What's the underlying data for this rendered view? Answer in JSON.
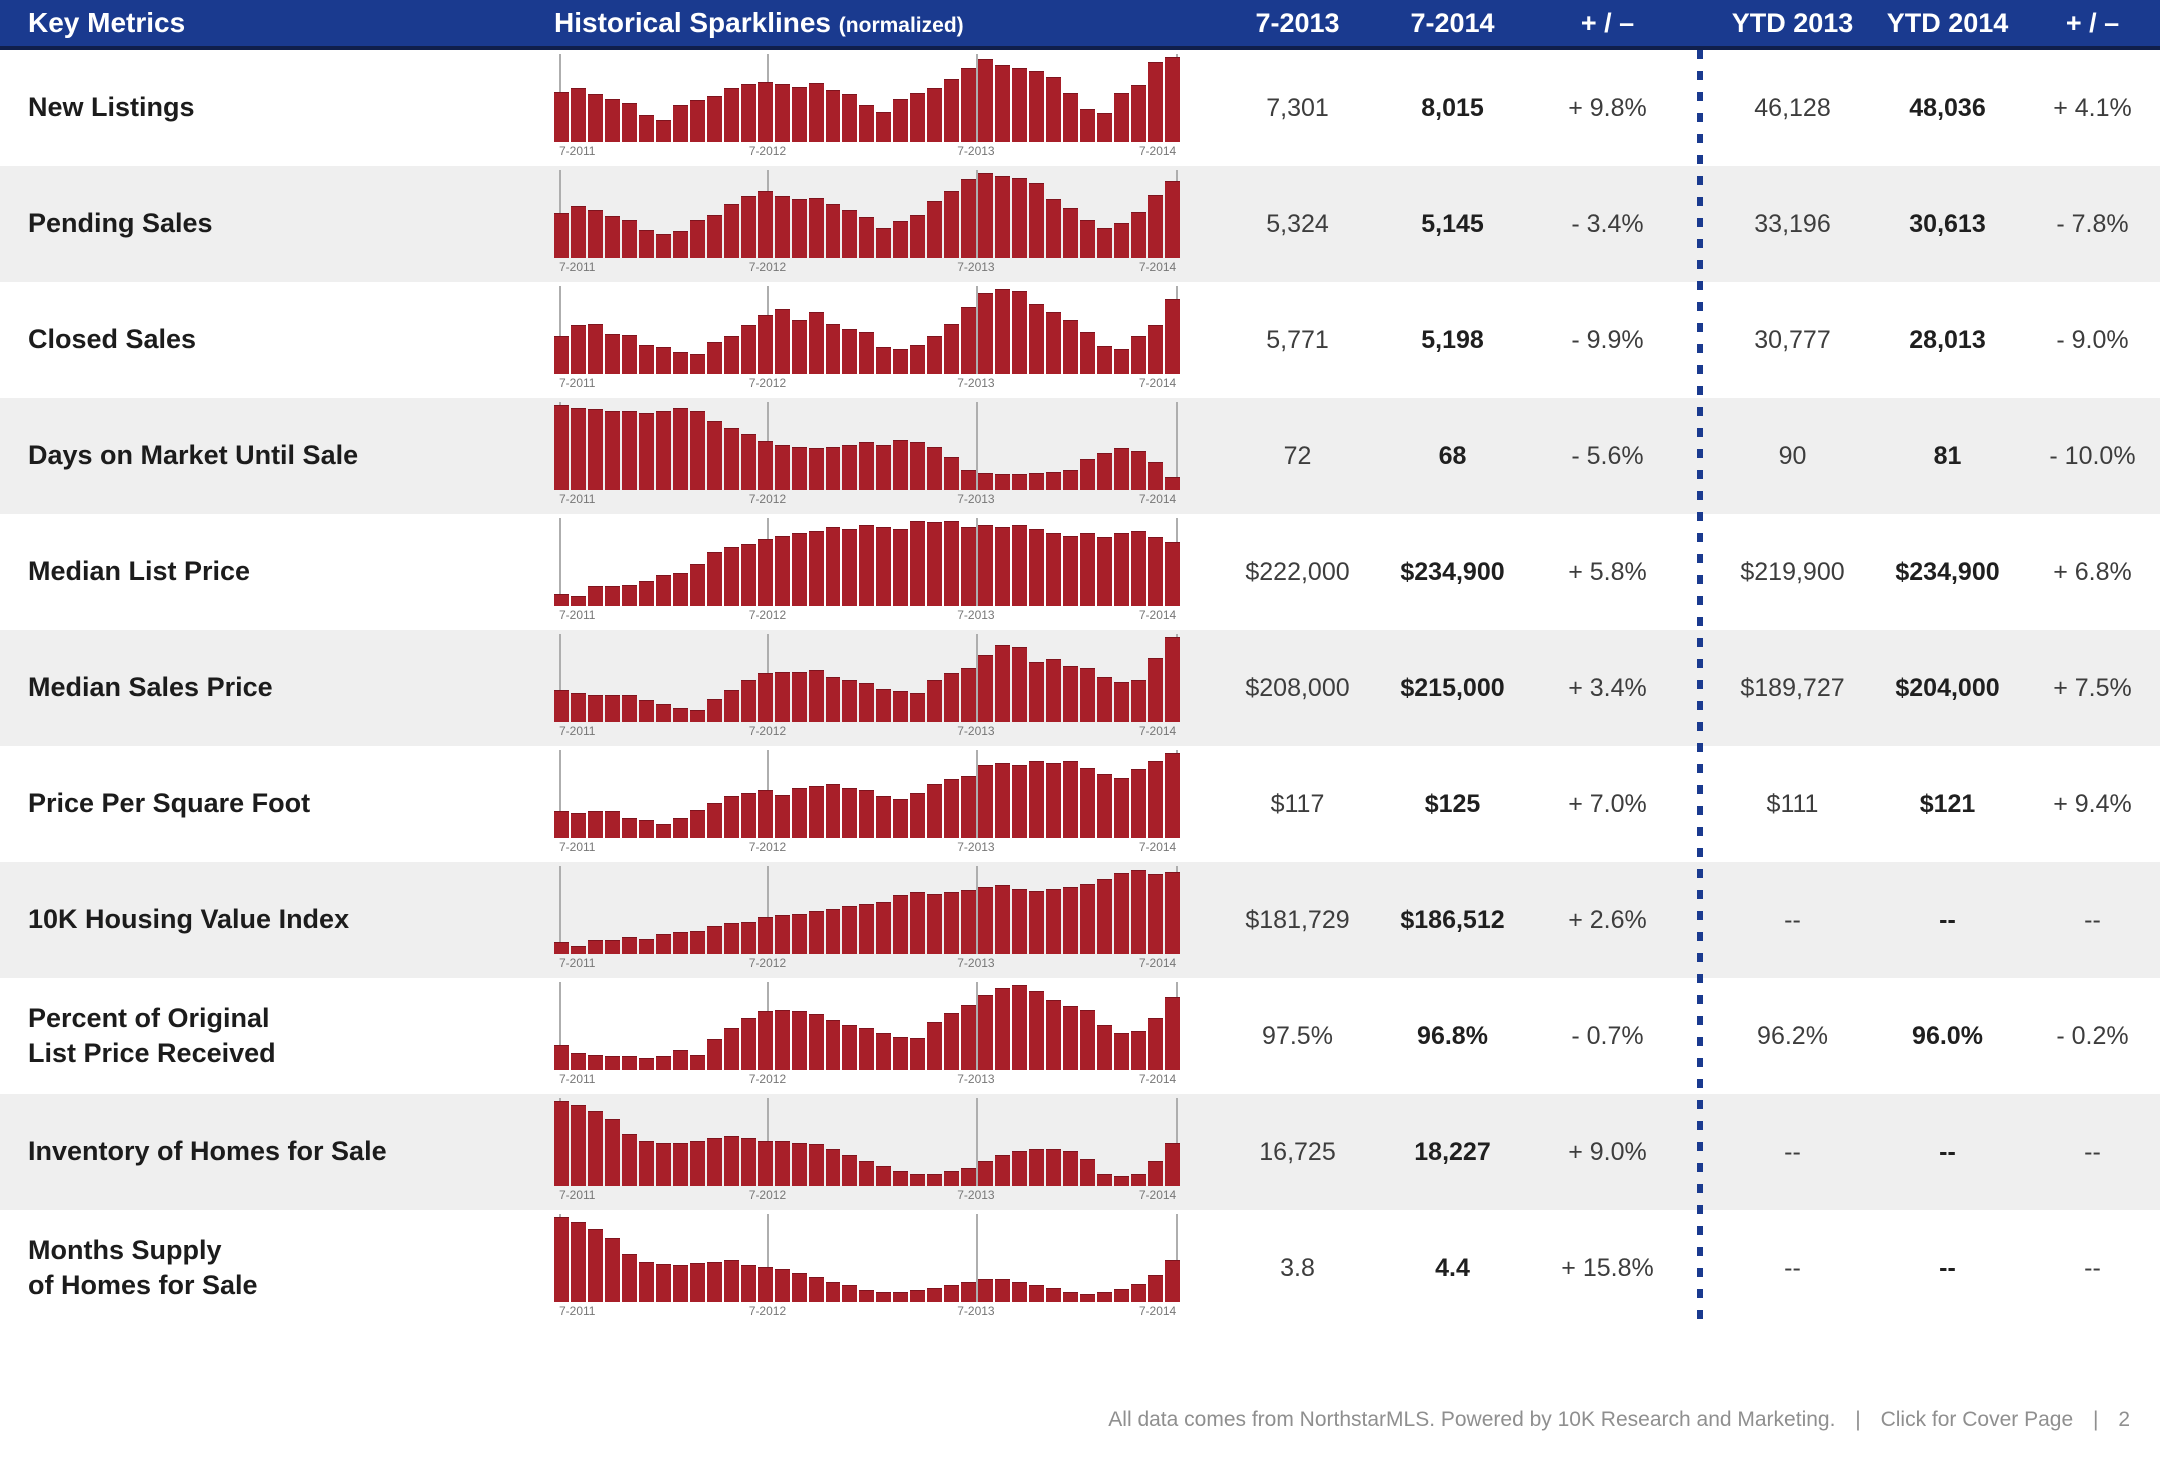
{
  "header": {
    "key_metrics": "Key Metrics",
    "sparklines": "Historical Sparklines",
    "sparklines_note": "(normalized)",
    "columns": [
      "7-2013",
      "7-2014",
      "+ / –",
      "YTD 2013",
      "YTD 2014",
      "+ / –"
    ]
  },
  "colors": {
    "header_bg": "#1a3a8f",
    "bar_red": "#a81f29",
    "row_alt_bg": "#efefef",
    "footer_text": "#8f8f8f"
  },
  "sparkline_axis_labels": [
    "7-2011",
    "7-2012",
    "7-2013",
    "7-2014"
  ],
  "rows": [
    {
      "metric": "New Listings",
      "m2013": "7,301",
      "m2014": "8,015",
      "change": "+ 9.8%",
      "ytd2013": "46,128",
      "ytd2014": "48,036",
      "ytd_change": "+ 4.1%",
      "spark": [
        0.58,
        0.63,
        0.55,
        0.5,
        0.45,
        0.3,
        0.24,
        0.42,
        0.48,
        0.53,
        0.63,
        0.67,
        0.7,
        0.67,
        0.64,
        0.68,
        0.6,
        0.55,
        0.42,
        0.34,
        0.5,
        0.56,
        0.63,
        0.73,
        0.86,
        0.97,
        0.9,
        0.86,
        0.83,
        0.76,
        0.56,
        0.38,
        0.33,
        0.56,
        0.66,
        0.93,
        1.0
      ]
    },
    {
      "metric": "Pending Sales",
      "m2013": "5,324",
      "m2014": "5,145",
      "change": "- 3.4%",
      "ytd2013": "33,196",
      "ytd2014": "30,613",
      "ytd_change": "- 7.8%",
      "spark": [
        0.52,
        0.6,
        0.55,
        0.48,
        0.44,
        0.32,
        0.27,
        0.3,
        0.43,
        0.5,
        0.63,
        0.72,
        0.78,
        0.72,
        0.68,
        0.7,
        0.62,
        0.55,
        0.47,
        0.34,
        0.42,
        0.5,
        0.66,
        0.78,
        0.92,
        1.0,
        0.96,
        0.94,
        0.88,
        0.68,
        0.58,
        0.44,
        0.34,
        0.4,
        0.53,
        0.73,
        0.9
      ]
    },
    {
      "metric": "Closed Sales",
      "m2013": "5,771",
      "m2014": "5,198",
      "change": "- 9.9%",
      "ytd2013": "30,777",
      "ytd2014": "28,013",
      "ytd_change": "- 9.0%",
      "spark": [
        0.44,
        0.56,
        0.58,
        0.46,
        0.45,
        0.33,
        0.3,
        0.25,
        0.22,
        0.36,
        0.44,
        0.56,
        0.68,
        0.76,
        0.62,
        0.72,
        0.58,
        0.52,
        0.48,
        0.3,
        0.28,
        0.33,
        0.43,
        0.58,
        0.78,
        0.95,
        1.0,
        0.97,
        0.82,
        0.72,
        0.62,
        0.48,
        0.32,
        0.28,
        0.43,
        0.56,
        0.88
      ]
    },
    {
      "metric": "Days on Market Until Sale",
      "m2013": "72",
      "m2014": "68",
      "change": "- 5.6%",
      "ytd2013": "90",
      "ytd2014": "81",
      "ytd_change": "- 10.0%",
      "spark": [
        1.0,
        0.96,
        0.95,
        0.92,
        0.92,
        0.9,
        0.92,
        0.96,
        0.92,
        0.8,
        0.72,
        0.65,
        0.56,
        0.52,
        0.5,
        0.48,
        0.5,
        0.52,
        0.55,
        0.52,
        0.58,
        0.55,
        0.5,
        0.38,
        0.22,
        0.18,
        0.17,
        0.17,
        0.18,
        0.2,
        0.22,
        0.35,
        0.42,
        0.48,
        0.45,
        0.32,
        0.14
      ]
    },
    {
      "metric": "Median List Price",
      "m2013": "$222,000",
      "m2014": "$234,900",
      "change": "+ 5.8%",
      "ytd2013": "$219,900",
      "ytd2014": "$234,900",
      "ytd_change": "+ 6.8%",
      "spark": [
        0.12,
        0.1,
        0.22,
        0.22,
        0.23,
        0.28,
        0.35,
        0.38,
        0.48,
        0.62,
        0.68,
        0.72,
        0.78,
        0.82,
        0.85,
        0.88,
        0.92,
        0.9,
        0.95,
        0.92,
        0.9,
        1.0,
        0.98,
        1.0,
        0.92,
        0.95,
        0.92,
        0.95,
        0.9,
        0.85,
        0.82,
        0.85,
        0.8,
        0.85,
        0.88,
        0.8,
        0.75
      ]
    },
    {
      "metric": "Median Sales Price",
      "m2013": "$208,000",
      "m2014": "$215,000",
      "change": "+ 3.4%",
      "ytd2013": "$189,727",
      "ytd2014": "$204,000",
      "ytd_change": "+ 7.5%",
      "spark": [
        0.36,
        0.33,
        0.3,
        0.3,
        0.3,
        0.25,
        0.2,
        0.15,
        0.12,
        0.26,
        0.36,
        0.48,
        0.56,
        0.58,
        0.58,
        0.6,
        0.52,
        0.48,
        0.45,
        0.38,
        0.35,
        0.33,
        0.48,
        0.56,
        0.62,
        0.78,
        0.9,
        0.88,
        0.7,
        0.73,
        0.65,
        0.62,
        0.52,
        0.46,
        0.48,
        0.74,
        1.0
      ]
    },
    {
      "metric": "Price Per Square Foot",
      "m2013": "$117",
      "m2014": "$125",
      "change": "+ 7.0%",
      "ytd2013": "$111",
      "ytd2014": "$121",
      "ytd_change": "+ 9.4%",
      "spark": [
        0.3,
        0.28,
        0.3,
        0.3,
        0.22,
        0.2,
        0.15,
        0.22,
        0.32,
        0.4,
        0.48,
        0.52,
        0.55,
        0.5,
        0.58,
        0.6,
        0.62,
        0.58,
        0.55,
        0.48,
        0.45,
        0.52,
        0.62,
        0.68,
        0.72,
        0.85,
        0.88,
        0.85,
        0.9,
        0.88,
        0.9,
        0.82,
        0.75,
        0.7,
        0.8,
        0.9,
        1.0
      ]
    },
    {
      "metric": "10K Housing Value Index",
      "m2013": "$181,729",
      "m2014": "$186,512",
      "change": "+ 2.6%",
      "ytd2013": "--",
      "ytd2014": "--",
      "ytd_change": "--",
      "spark": [
        0.12,
        0.08,
        0.15,
        0.15,
        0.18,
        0.16,
        0.22,
        0.25,
        0.26,
        0.32,
        0.35,
        0.36,
        0.42,
        0.45,
        0.46,
        0.5,
        0.52,
        0.55,
        0.58,
        0.6,
        0.68,
        0.72,
        0.7,
        0.72,
        0.75,
        0.78,
        0.8,
        0.76,
        0.73,
        0.76,
        0.78,
        0.82,
        0.88,
        0.95,
        0.98,
        0.94,
        0.96
      ]
    },
    {
      "metric": "Percent of Original\nList Price Received",
      "m2013": "97.5%",
      "m2014": "96.8%",
      "change": "- 0.7%",
      "ytd2013": "96.2%",
      "ytd2014": "96.0%",
      "ytd_change": "- 0.2%",
      "spark": [
        0.28,
        0.18,
        0.16,
        0.15,
        0.15,
        0.12,
        0.15,
        0.22,
        0.16,
        0.35,
        0.48,
        0.6,
        0.68,
        0.7,
        0.68,
        0.65,
        0.58,
        0.52,
        0.48,
        0.42,
        0.38,
        0.36,
        0.55,
        0.66,
        0.76,
        0.88,
        0.96,
        1.0,
        0.92,
        0.82,
        0.75,
        0.7,
        0.52,
        0.42,
        0.45,
        0.6,
        0.85
      ]
    },
    {
      "metric": "Inventory of Homes for Sale",
      "m2013": "16,725",
      "m2014": "18,227",
      "change": "+ 9.0%",
      "ytd2013": "--",
      "ytd2014": "--",
      "ytd_change": "--",
      "spark": [
        1.0,
        0.95,
        0.88,
        0.78,
        0.6,
        0.52,
        0.5,
        0.5,
        0.52,
        0.55,
        0.58,
        0.55,
        0.52,
        0.52,
        0.5,
        0.48,
        0.42,
        0.35,
        0.28,
        0.22,
        0.16,
        0.13,
        0.13,
        0.16,
        0.2,
        0.28,
        0.35,
        0.4,
        0.42,
        0.42,
        0.4,
        0.3,
        0.12,
        0.1,
        0.12,
        0.28,
        0.5
      ]
    },
    {
      "metric": "Months Supply\nof Homes for Sale",
      "m2013": "3.8",
      "m2014": "4.4",
      "change": "+ 15.8%",
      "ytd2013": "--",
      "ytd2014": "--",
      "ytd_change": "--",
      "spark": [
        1.0,
        0.93,
        0.85,
        0.75,
        0.55,
        0.46,
        0.43,
        0.42,
        0.45,
        0.46,
        0.48,
        0.42,
        0.4,
        0.38,
        0.33,
        0.28,
        0.22,
        0.18,
        0.13,
        0.1,
        0.1,
        0.12,
        0.15,
        0.18,
        0.22,
        0.26,
        0.26,
        0.22,
        0.18,
        0.15,
        0.1,
        0.08,
        0.1,
        0.14,
        0.2,
        0.3,
        0.48
      ]
    }
  ],
  "footer": {
    "credit": "All data comes from NorthstarMLS. Powered by 10K Research and Marketing.",
    "separator": "|",
    "link": "Click for Cover Page",
    "page": "2"
  }
}
